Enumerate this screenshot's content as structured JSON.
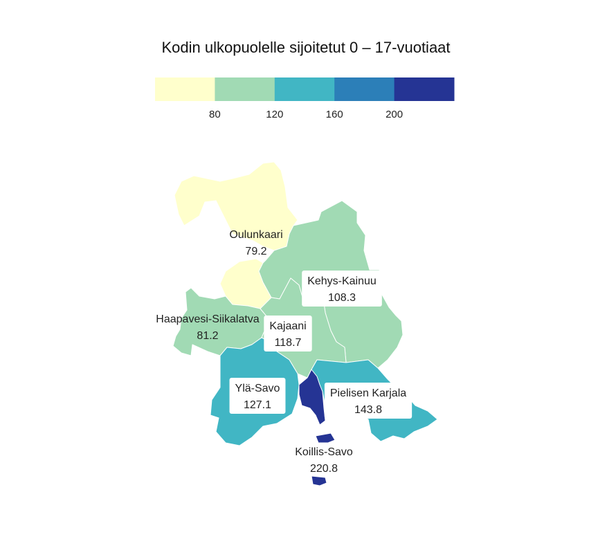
{
  "map": {
    "title": "Kodin ulkopuolelle sijoitetut 0 – 17-vuotiaat",
    "legend": {
      "colors": [
        "#ffffcc",
        "#a1dab4",
        "#41b6c4",
        "#2c7fb8",
        "#253494"
      ],
      "breaks": [
        "80",
        "120",
        "160",
        "200"
      ]
    },
    "regions": [
      {
        "id": "oulunkaari",
        "name": "Oulunkaari",
        "value": "79.2",
        "color": "#ffffcc"
      },
      {
        "id": "kehys-kainuu",
        "name": "Kehys-Kainuu",
        "value": "108.3",
        "color": "#a1dab4"
      },
      {
        "id": "haapavesi-siikalatva",
        "name": "Haapavesi-Siikalatva",
        "value": "81.2",
        "color": "#a1dab4"
      },
      {
        "id": "kajaani",
        "name": "Kajaani",
        "value": "118.7",
        "color": "#a1dab4"
      },
      {
        "id": "yla-savo",
        "name": "Ylä-Savo",
        "value": "127.1",
        "color": "#41b6c4"
      },
      {
        "id": "pielisen-karjala",
        "name": "Pielisen Karjala",
        "value": "143.8",
        "color": "#41b6c4"
      },
      {
        "id": "koillis-savo",
        "name": "Koillis-Savo",
        "value": "220.8",
        "color": "#253494"
      }
    ]
  }
}
